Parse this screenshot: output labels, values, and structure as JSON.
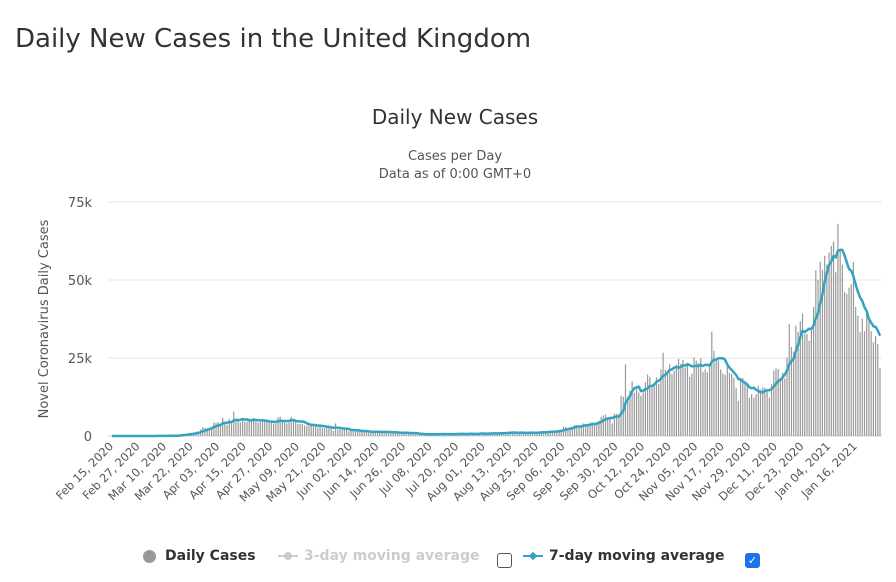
{
  "page_title": "Daily New Cases in the United Kingdom",
  "legend": {
    "daily": "Daily Cases",
    "ma3": "3-day moving average",
    "ma3_checked": false,
    "ma7": "7-day moving average",
    "ma7_checked": true,
    "check_mark": "✓"
  },
  "colors": {
    "bars": "#999999",
    "ma7": "#36a2c2",
    "ma3_disabled": "#cccccc",
    "grid": "#e6e6e6"
  },
  "chart_data": {
    "type": "bar",
    "title": "Daily New Cases",
    "subtitle": [
      "Cases per Day",
      "Data as of 0:00 GMT+0"
    ],
    "ylabel": "Novel Coronavirus Daily Cases",
    "xlabel": "",
    "ylim": [
      0,
      75000
    ],
    "yticks": [
      {
        "v": 0,
        "label": "0"
      },
      {
        "v": 25000,
        "label": "25k"
      },
      {
        "v": 50000,
        "label": "50k"
      },
      {
        "v": 75000,
        "label": "75k"
      }
    ],
    "grid": true,
    "legend_position": "bottom",
    "start_date": "Feb 15, 2020",
    "end_date": "Jan 27, 2021",
    "xtick_labels": [
      "Feb 15, 2020",
      "Feb 27, 2020",
      "Mar 10, 2020",
      "Mar 22, 2020",
      "Apr 03, 2020",
      "Apr 15, 2020",
      "Apr 27, 2020",
      "May 09, 2020",
      "May 21, 2020",
      "Jun 02, 2020",
      "Jun 14, 2020",
      "Jun 26, 2020",
      "Jul 08, 2020",
      "Jul 20, 2020",
      "Aug 01, 2020",
      "Aug 13, 2020",
      "Aug 25, 2020",
      "Sep 06, 2020",
      "Sep 18, 2020",
      "Sep 30, 2020",
      "Oct 12, 2020",
      "Oct 24, 2020",
      "Nov 05, 2020",
      "Nov 17, 2020",
      "Nov 29, 2020",
      "Dec 11, 2020",
      "Dec 23, 2020",
      "Jan 04, 2021",
      "Jan 16, 2021"
    ],
    "xtick_every_days": 12,
    "series": [
      {
        "name": "Daily Cases",
        "type": "bar",
        "values": [
          0,
          0,
          0,
          0,
          0,
          0,
          0,
          0,
          0,
          0,
          0,
          0,
          0,
          2,
          3,
          3,
          13,
          4,
          11,
          34,
          30,
          48,
          43,
          67,
          48,
          52,
          83,
          134,
          117,
          133,
          152,
          407,
          676,
          643,
          714,
          1035,
          665,
          967,
          1427,
          1452,
          2129,
          2885,
          2546,
          2433,
          2619,
          3009,
          4324,
          4244,
          4450,
          3735,
          5903,
          3802,
          3634,
          5491,
          4344,
          7860,
          5233,
          5288,
          4342,
          5252,
          4605,
          4617,
          5599,
          5525,
          5850,
          4676,
          4301,
          4451,
          4583,
          5386,
          4913,
          4463,
          4309,
          3996,
          4076,
          6032,
          6201,
          4806,
          4339,
          3985,
          4406,
          6111,
          5614,
          4649,
          3896,
          3923,
          3877,
          3403,
          3242,
          3446,
          3560,
          3450,
          3534,
          2684,
          3412,
          2615,
          2472,
          2959,
          2940,
          2409,
          1625,
          4043,
          2013,
          2095,
          1887,
          2445,
          1936,
          1570,
          1653,
          1871,
          1805,
          1650,
          1557,
          1326,
          1205,
          1741,
          1003,
          1266,
          1541,
          1425,
          1514,
          1056,
          1279,
          1115,
          1221,
          1346,
          1295,
          1221,
          958,
          874,
          653,
          1118,
          1380,
          890,
          1006,
          815,
          689,
          829,
          576,
          544,
          624,
          516,
          352,
          581,
          630,
          512,
          642,
          820,
          650,
          530,
          597,
          538,
          463,
          642,
          827,
          650,
          726,
          767,
          580,
          560,
          445,
          767,
          1004,
          685,
          763,
          581,
          880,
          846,
          771,
          744,
          938,
          670,
          892,
          950,
          871,
          758,
          1062,
          1148,
          1077,
          1009,
          1441,
          1063,
          1040,
          713,
          1089,
          1182,
          812,
          1033,
          1182,
          1288,
          1041,
          853,
          1184,
          1048,
          1522,
          1276,
          1108,
          1715,
          1406,
          1295,
          1508,
          1735,
          1940,
          1813,
          2988,
          2948,
          2420,
          2659,
          2919,
          3539,
          3497,
          3330,
          3105,
          3991,
          3395,
          3679,
          4322,
          4422,
          3899,
          4368,
          4926,
          6178,
          6634,
          6874,
          6042,
          5693,
          4044,
          7143,
          7108,
          6914,
          12872,
          12594,
          22961,
          12594,
          14542,
          17540,
          13864,
          15165,
          13972,
          12872,
          13972,
          17234,
          19724,
          18980,
          15650,
          16982,
          18804,
          16717,
          21331,
          26688,
          21242,
          20530,
          23012,
          19790,
          20890,
          22885,
          24701,
          23065,
          24405,
          21915,
          23254,
          18950,
          20018,
          25177,
          24141,
          23287,
          24957,
          20572,
          21350,
          20412,
          22950,
          33470,
          27301,
          24962,
          24141,
          21363,
          20051,
          19609,
          22915,
          20252,
          19875,
          18662,
          15450,
          11299,
          18213,
          18565,
          17555,
          16131,
          12155,
          13430,
          12330,
          13406,
          16170,
          14879,
          15539,
          15539,
          14718,
          12282,
          16578,
          20964,
          21672,
          21502,
          18447,
          20263,
          18450,
          25161,
          35928,
          28507,
          27052,
          35383,
          33364,
          36804,
          39237,
          32725,
          32725,
          30501,
          34693,
          41385,
          53135,
          50023,
          55892,
          53285,
          57725,
          54990,
          58784,
          60916,
          62322,
          52618,
          68053,
          59937,
          54940,
          46169,
          45533,
          47525,
          48682,
          55761,
          41346,
          38598,
          33355,
          37535,
          33552,
          40261,
          37892,
          33552,
          30004,
          32000,
          29500,
          21800
        ]
      },
      {
        "name": "7-day moving average",
        "type": "line",
        "window_days": 7
      }
    ]
  }
}
